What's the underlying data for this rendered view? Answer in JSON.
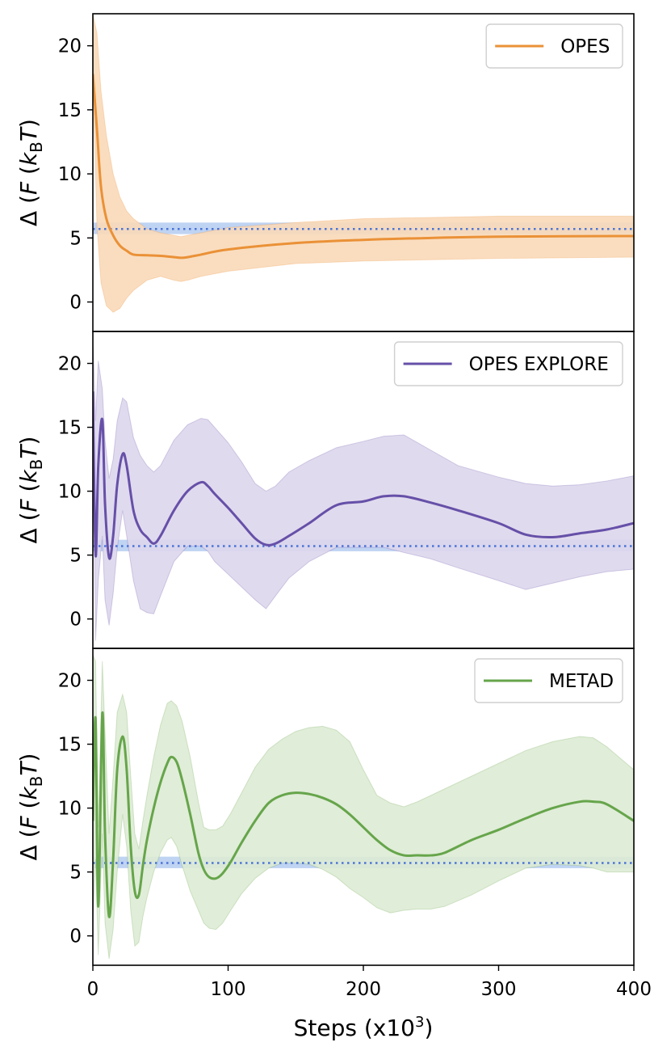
{
  "figure": {
    "xlabel_text": "Steps (x10",
    "xlabel_sup": "3",
    "xlabel_close": ")",
    "ylabel_prefix": "ΔF (",
    "ylabel_k": "k",
    "ylabel_sub": "B",
    "ylabel_T": "T",
    "ylabel_suffix": ")"
  },
  "chart_data": [
    {
      "type": "line",
      "legend_position": "top-right",
      "xlim": [
        0,
        400
      ],
      "ylim": [
        -2.3,
        22.5
      ],
      "x_ticks": [
        0,
        100,
        200,
        300,
        400
      ],
      "y_ticks": [
        0,
        5,
        10,
        15,
        20
      ],
      "reference": {
        "value": 5.7,
        "band": [
          5.3,
          6.2
        ],
        "color": "#4a73d6",
        "band_color": "#a9c4ee",
        "style": "dotted"
      },
      "series": [
        {
          "name": "OPES",
          "color": "#ea9137",
          "band_color": "#f9d9b8",
          "x": [
            0,
            3,
            6,
            10,
            15,
            20,
            25,
            30,
            40,
            50,
            60,
            65,
            70,
            80,
            100,
            150,
            200,
            250,
            300,
            400
          ],
          "y": [
            17.8,
            13.5,
            9,
            6.5,
            5.2,
            4.4,
            4.0,
            3.7,
            3.65,
            3.6,
            3.5,
            3.45,
            3.5,
            3.7,
            4.1,
            4.6,
            4.85,
            5.0,
            5.1,
            5.15
          ],
          "lower": [
            17.8,
            6,
            1.5,
            -0.3,
            -0.8,
            -0.5,
            0.3,
            0.9,
            1.7,
            2.0,
            1.7,
            1.6,
            1.7,
            2.0,
            2.4,
            3.0,
            3.2,
            3.3,
            3.4,
            3.5
          ],
          "upper": [
            22.5,
            21,
            16.5,
            13,
            10,
            8.2,
            7.1,
            6.5,
            5.7,
            5.4,
            5.2,
            5.1,
            5.2,
            5.4,
            5.8,
            6.2,
            6.5,
            6.6,
            6.7,
            6.7
          ]
        }
      ]
    },
    {
      "type": "line",
      "legend_position": "top-right",
      "xlim": [
        0,
        400
      ],
      "ylim": [
        -2.3,
        22.5
      ],
      "x_ticks": [
        0,
        100,
        200,
        300,
        400
      ],
      "y_ticks": [
        0,
        5,
        10,
        15,
        20
      ],
      "reference": {
        "value": 5.7,
        "band": [
          5.3,
          6.2
        ],
        "color": "#4a73d6",
        "band_color": "#a9c4ee",
        "style": "dotted"
      },
      "series": [
        {
          "name": "OPES EXPLORE",
          "color": "#6650a8",
          "band_color": "#ddd6ec",
          "x": [
            0,
            2,
            4,
            7,
            9,
            12,
            15,
            18,
            22,
            25,
            30,
            35,
            40,
            45,
            50,
            60,
            70,
            80,
            85,
            90,
            100,
            110,
            120,
            128,
            135,
            145,
            160,
            180,
            200,
            215,
            230,
            250,
            270,
            300,
            320,
            340,
            360,
            380,
            400
          ],
          "y": [
            17.8,
            5.0,
            12.0,
            15.6,
            9.0,
            4.8,
            6.5,
            10.5,
            12.9,
            12.0,
            8.5,
            7.0,
            6.4,
            5.9,
            6.5,
            8.5,
            10.0,
            10.7,
            10.4,
            9.8,
            8.7,
            7.5,
            6.3,
            5.8,
            5.9,
            6.5,
            7.5,
            8.9,
            9.2,
            9.6,
            9.6,
            9.1,
            8.5,
            7.5,
            6.6,
            6.4,
            6.7,
            7.0,
            7.5
          ],
          "lower": [
            17.8,
            -1.7,
            3.0,
            6.5,
            1.5,
            -0.5,
            2.0,
            5.5,
            8.5,
            6.5,
            3.0,
            0.8,
            0.5,
            0.4,
            1.8,
            4.5,
            5.7,
            5.7,
            5.3,
            4.5,
            3.5,
            2.5,
            1.5,
            0.8,
            1.8,
            3.2,
            4.5,
            5.6,
            5.6,
            5.6,
            5.2,
            4.7,
            4.0,
            3.0,
            2.3,
            2.8,
            3.3,
            3.7,
            3.9
          ],
          "upper": [
            22.5,
            15.5,
            20.2,
            18.0,
            14.0,
            11.0,
            12.5,
            15.5,
            17.3,
            17.0,
            14.2,
            12.8,
            12.0,
            11.5,
            12.0,
            14.0,
            15.2,
            15.7,
            15.6,
            15.0,
            13.8,
            12.3,
            10.6,
            10.0,
            10.4,
            11.5,
            12.4,
            13.4,
            13.9,
            14.3,
            14.4,
            13.2,
            12.0,
            11.1,
            10.6,
            10.4,
            10.5,
            10.8,
            11.2
          ]
        }
      ]
    },
    {
      "type": "line",
      "legend_position": "top-right",
      "xlim": [
        0,
        400
      ],
      "ylim": [
        -2.3,
        22.5
      ],
      "x_ticks": [
        0,
        100,
        200,
        300,
        400
      ],
      "y_ticks": [
        0,
        5,
        10,
        15,
        20
      ],
      "reference": {
        "value": 5.7,
        "band": [
          5.3,
          6.2
        ],
        "color": "#4a73d6",
        "band_color": "#a9c4ee",
        "style": "dotted"
      },
      "series": [
        {
          "name": "METAD",
          "color": "#66a54b",
          "band_color": "#ddebd4",
          "x": [
            0,
            2,
            4,
            7,
            9,
            12,
            15,
            18,
            22,
            25,
            28,
            31,
            34,
            37,
            40,
            45,
            50,
            55,
            58,
            62,
            66,
            72,
            78,
            82,
            86,
            91,
            96,
            102,
            110,
            120,
            130,
            140,
            150,
            160,
            170,
            180,
            190,
            200,
            210,
            220,
            230,
            240,
            250,
            260,
            280,
            300,
            320,
            340,
            360,
            370,
            380,
            400
          ],
          "y": [
            9.0,
            17.0,
            2.3,
            17.4,
            8.0,
            1.5,
            6.0,
            13.0,
            15.6,
            13.0,
            7.0,
            3.5,
            3.2,
            5.5,
            7.5,
            10.0,
            12.0,
            13.5,
            14.0,
            13.6,
            12.2,
            9.5,
            6.5,
            5.2,
            4.6,
            4.5,
            4.9,
            5.8,
            7.3,
            9.0,
            10.4,
            11.0,
            11.2,
            11.1,
            10.8,
            10.3,
            9.5,
            8.5,
            7.5,
            6.7,
            6.3,
            6.3,
            6.3,
            6.5,
            7.5,
            8.3,
            9.2,
            10.0,
            10.5,
            10.5,
            10.3,
            9.0
          ],
          "lower": [
            1.0,
            6.0,
            -1.5,
            8.0,
            1.0,
            -1.8,
            0.5,
            5.0,
            9.5,
            7.0,
            2.0,
            -0.8,
            -0.5,
            1.5,
            3.0,
            5.0,
            6.5,
            7.5,
            7.7,
            7.0,
            5.5,
            3.5,
            2.0,
            1.0,
            0.6,
            0.5,
            1.0,
            2.0,
            3.3,
            4.5,
            5.3,
            5.7,
            5.7,
            5.6,
            5.2,
            4.6,
            3.7,
            3.0,
            2.2,
            1.8,
            2.0,
            2.1,
            2.1,
            2.3,
            3.2,
            4.3,
            5.3,
            5.6,
            5.5,
            5.3,
            5.0,
            5.0
          ],
          "upper": [
            22.0,
            21.5,
            8.5,
            21.5,
            16.0,
            8.0,
            12.5,
            17.5,
            18.9,
            17.5,
            12.5,
            8.0,
            6.8,
            9.0,
            11.0,
            14.0,
            16.5,
            18.2,
            18.4,
            18.0,
            16.8,
            14.0,
            10.5,
            8.5,
            8.3,
            8.3,
            8.6,
            9.6,
            11.2,
            13.2,
            14.6,
            15.4,
            16.0,
            16.3,
            16.4,
            16.1,
            15.2,
            13.0,
            11.0,
            10.4,
            10.1,
            10.5,
            11.0,
            11.5,
            12.5,
            13.5,
            14.5,
            15.2,
            15.6,
            15.5,
            14.8,
            13.0
          ]
        }
      ]
    }
  ]
}
